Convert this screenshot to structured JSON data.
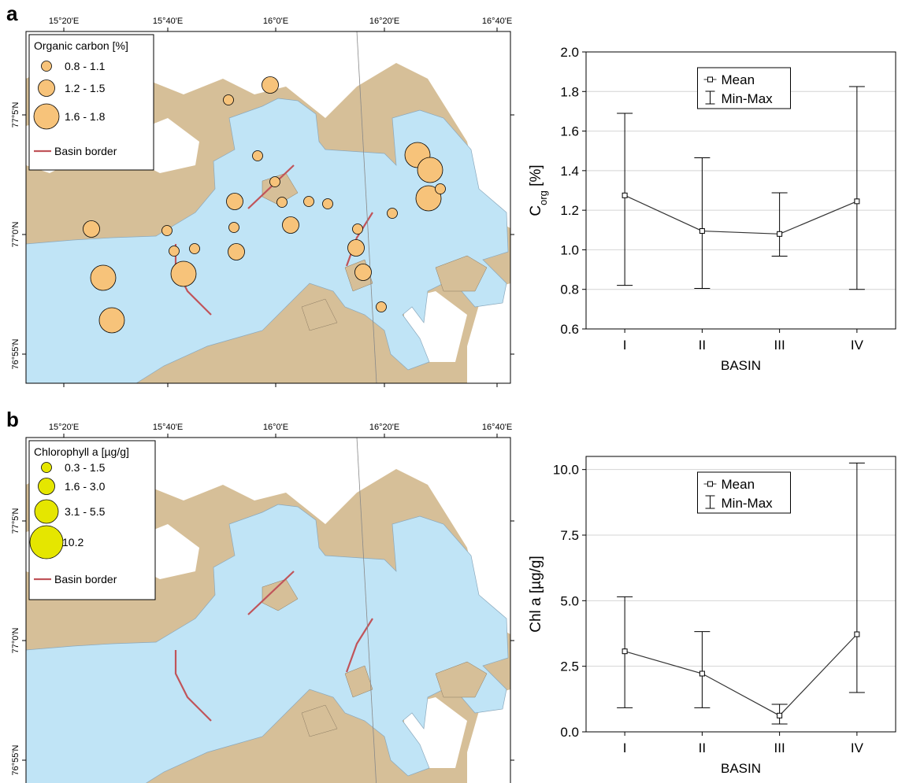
{
  "panels": [
    {
      "letter": "a",
      "map": {
        "lon_ticks": [
          "15°20'E",
          "15°40'E",
          "16°0'E",
          "16°20'E",
          "16°40'E"
        ],
        "lat_ticks": [
          "77°5'N",
          "77°0'N",
          "76°55'N"
        ],
        "legend_title": "Organic carbon [%]",
        "size_classes": [
          "0.8 - 1.1",
          "1.2 - 1.5",
          "1.6 - 1.8"
        ],
        "border_label": "Basin border",
        "marker_color": "#f7c37a"
      },
      "chart_data": {
        "type": "line",
        "x": [
          "I",
          "II",
          "III",
          "IV"
        ],
        "series": [
          {
            "name": "Mean",
            "values": [
              1.275,
              1.095,
              1.08,
              1.245
            ]
          },
          {
            "name": "Min-Max",
            "min": [
              0.82,
              0.805,
              0.968,
              0.8
            ],
            "max": [
              1.69,
              1.465,
              1.288,
              1.825
            ]
          }
        ],
        "xlabel": "BASIN",
        "ylabel_main": "C",
        "ylabel_sub": "org",
        "ylabel_tail": " [%]",
        "ylim": [
          0.6,
          2.0
        ],
        "yticks": [
          "0.6",
          "0.8",
          "1.0",
          "1.2",
          "1.4",
          "1.6",
          "1.8",
          "2.0"
        ],
        "grid": true,
        "legend_placement": "top-center"
      }
    },
    {
      "letter": "b",
      "map": {
        "lon_ticks": [
          "15°20'E",
          "15°40'E",
          "16°0'E",
          "16°20'E",
          "16°40'E"
        ],
        "lat_ticks": [
          "77°5'N",
          "77°0'N",
          "76°55'N"
        ],
        "legend_title": "Chlorophyll a [µg/g]",
        "size_classes": [
          "0.3 - 1.5",
          "1.6 - 3.0",
          "3.1 - 5.5",
          "10.2"
        ],
        "border_label": "Basin border",
        "marker_color": "#e5e600"
      },
      "chart_data": {
        "type": "line",
        "x": [
          "I",
          "II",
          "III",
          "IV"
        ],
        "series": [
          {
            "name": "Mean",
            "values": [
              3.07,
              2.22,
              0.62,
              3.72
            ]
          },
          {
            "name": "Min-Max",
            "min": [
              0.92,
              0.92,
              0.3,
              1.5
            ],
            "max": [
              5.15,
              3.82,
              1.05,
              10.25
            ]
          }
        ],
        "xlabel": "BASIN",
        "ylabel_main": "Chl a [µg/g]",
        "ylabel_sub": "",
        "ylabel_tail": "",
        "ylim": [
          0,
          10.5
        ],
        "yticks": [
          "0.0",
          "2.5",
          "5.0",
          "7.5",
          "10.0"
        ],
        "grid": true,
        "legend_placement": "top-center"
      }
    }
  ],
  "colors": {
    "sea": "#c0e4f6",
    "land": "#d6bf98",
    "ice": "#ffffff",
    "border_line": "#c0545a",
    "axis": "#000000",
    "grid": "#d4d4d4"
  }
}
